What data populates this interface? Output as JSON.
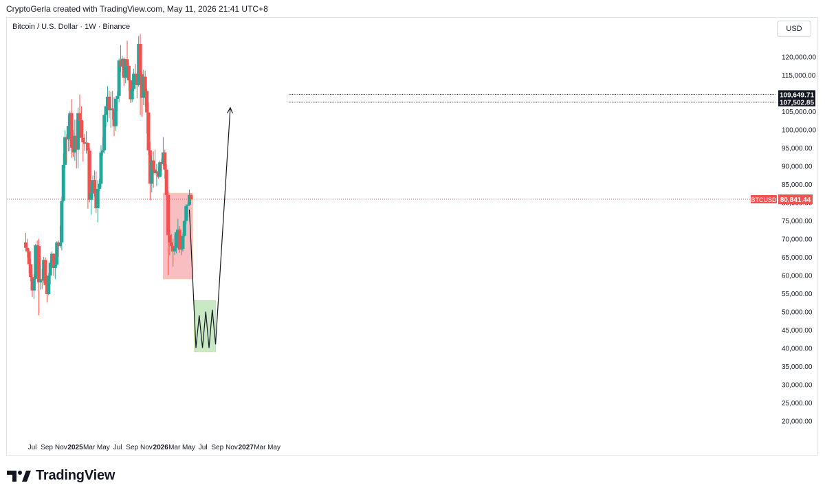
{
  "header": {
    "text": "CryptoGerla created with TradingView.com, May 11, 2026 21:41 UTC+8"
  },
  "symbol": {
    "text": "Bitcoin / U.S. Dollar · 1W · Binance"
  },
  "currency_button": {
    "label": "USD"
  },
  "footer": {
    "brand": "TradingView"
  },
  "colors": {
    "up": "#26a69a",
    "down": "#ef5350",
    "price_line": "#ef5350",
    "red_zone_fill": "#f7a8ad",
    "green_zone_fill": "#b7e1b0",
    "text": "#131722"
  },
  "chart_data": {
    "type": "candlestick",
    "title": "",
    "xlabel": "",
    "ylabel": "",
    "ylim": [
      16000,
      126000
    ],
    "grid": false,
    "x_tick_labels": [
      "Jul",
      "Sep",
      "Nov",
      "2025",
      "Mar",
      "May",
      "Jul",
      "Sep",
      "Nov",
      "2026",
      "Mar",
      "May",
      "Jul",
      "Sep",
      "Nov",
      "2027",
      "Mar",
      "May"
    ],
    "x_tick_dates": [
      "2024-07-01",
      "2024-09-01",
      "2024-11-01",
      "2025-01-01",
      "2025-03-01",
      "2025-05-01",
      "2025-07-01",
      "2025-09-01",
      "2025-11-01",
      "2026-01-01",
      "2026-03-01",
      "2026-05-01",
      "2026-07-01",
      "2026-09-01",
      "2026-11-01",
      "2027-01-01",
      "2027-03-01",
      "2027-05-01"
    ],
    "y_tick_values": [
      20000,
      25000,
      30000,
      35000,
      40000,
      45000,
      50000,
      55000,
      60000,
      65000,
      70000,
      75000,
      80000,
      85000,
      90000,
      95000,
      100000,
      105000,
      110000,
      115000,
      120000
    ],
    "y_tick_labels": [
      "20,000.00",
      "25,000.00",
      "30,000.00",
      "35,000.00",
      "40,000.00",
      "45,000.00",
      "50,000.00",
      "55,000.00",
      "60,000.00",
      "65,000.00",
      "70,000.00",
      "75,000.00",
      "80,000.00",
      "85,000.00",
      "90,000.00",
      "95,000.00",
      "100,000.00",
      "105,000.00",
      "110,000.00",
      "115,000.00",
      "120,000.00"
    ],
    "current_price": {
      "label": "BTCUSD",
      "value": 80841.44,
      "value_label": "80,841.44"
    },
    "levels": [
      {
        "value": 109649.71,
        "label": "109,649.71"
      },
      {
        "value": 107502.85,
        "label": "107,502.85"
      }
    ],
    "zones": [
      {
        "name": "red",
        "x_start": "2026-01-12",
        "x_end": "2026-05-18",
        "y_low": 59000,
        "y_high": 82500
      },
      {
        "name": "green",
        "x_start": "2026-05-25",
        "x_end": "2026-08-24",
        "y_low": 39000,
        "y_high": 53000
      }
    ],
    "projection_path": [
      [
        "2026-05-04",
        78000
      ],
      [
        "2026-06-01",
        40000
      ],
      [
        "2026-06-15",
        49000
      ],
      [
        "2026-06-29",
        40000
      ],
      [
        "2026-07-13",
        50000
      ],
      [
        "2026-07-27",
        40000
      ],
      [
        "2026-08-10",
        50500
      ],
      [
        "2026-08-24",
        41000
      ],
      [
        "2026-10-26",
        106000
      ]
    ],
    "candles": [
      [
        "2024-06-03",
        69000,
        71600,
        66500,
        67500
      ],
      [
        "2024-06-10",
        67500,
        70000,
        64900,
        66500
      ],
      [
        "2024-06-17",
        66500,
        67200,
        60500,
        63000
      ],
      [
        "2024-06-24",
        63000,
        64500,
        58400,
        59500
      ],
      [
        "2024-07-01",
        59500,
        60200,
        54000,
        55800
      ],
      [
        "2024-07-08",
        55800,
        60300,
        53500,
        59000
      ],
      [
        "2024-07-15",
        59000,
        68600,
        58600,
        68200
      ],
      [
        "2024-07-22",
        68200,
        69500,
        63500,
        68000
      ],
      [
        "2024-07-29",
        68000,
        70000,
        49000,
        58000
      ],
      [
        "2024-08-05",
        58000,
        62700,
        56000,
        58900
      ],
      [
        "2024-08-12",
        58900,
        61800,
        56200,
        58500
      ],
      [
        "2024-08-19",
        58500,
        65000,
        57800,
        64200
      ],
      [
        "2024-08-26",
        64200,
        64900,
        57200,
        57300
      ],
      [
        "2024-09-02",
        57300,
        58500,
        52500,
        54800
      ],
      [
        "2024-09-09",
        54800,
        60600,
        54500,
        59900
      ],
      [
        "2024-09-16",
        59900,
        64200,
        57500,
        63400
      ],
      [
        "2024-09-23",
        63400,
        66500,
        62700,
        65900
      ],
      [
        "2024-09-30",
        65900,
        66000,
        59800,
        62000
      ],
      [
        "2024-10-07",
        62000,
        64500,
        58900,
        62900
      ],
      [
        "2024-10-14",
        62900,
        69300,
        62500,
        69000
      ],
      [
        "2024-10-21",
        69000,
        69500,
        65000,
        68000
      ],
      [
        "2024-10-28",
        68000,
        73600,
        67500,
        69000
      ],
      [
        "2024-11-04",
        69000,
        81500,
        66800,
        80400
      ],
      [
        "2024-11-11",
        80400,
        93400,
        80000,
        90300
      ],
      [
        "2024-11-18",
        90300,
        99800,
        89400,
        97900
      ],
      [
        "2024-11-25",
        97900,
        98700,
        90800,
        97300
      ],
      [
        "2024-12-02",
        97300,
        104000,
        94000,
        101000
      ],
      [
        "2024-12-09",
        101000,
        105000,
        94100,
        104500
      ],
      [
        "2024-12-16",
        104500,
        108300,
        92200,
        95000
      ],
      [
        "2024-12-23",
        95000,
        99900,
        92500,
        93700
      ],
      [
        "2024-12-30",
        93700,
        102700,
        91400,
        98300
      ],
      [
        "2025-01-06",
        98300,
        102700,
        89300,
        94500
      ],
      [
        "2025-01-13",
        94500,
        106000,
        89400,
        104500
      ],
      [
        "2025-01-20",
        104500,
        109600,
        99500,
        102600
      ],
      [
        "2025-01-27",
        102600,
        106400,
        97800,
        97700
      ],
      [
        "2025-02-03",
        97700,
        102500,
        91200,
        96500
      ],
      [
        "2025-02-10",
        96500,
        98800,
        94100,
        96100
      ],
      [
        "2025-02-17",
        96100,
        99500,
        93400,
        96300
      ],
      [
        "2025-02-24",
        96300,
        96500,
        78300,
        94200
      ],
      [
        "2025-03-03",
        94200,
        95000,
        80100,
        80700
      ],
      [
        "2025-03-10",
        80700,
        85000,
        76600,
        82600
      ],
      [
        "2025-03-17",
        82600,
        87400,
        81200,
        86100
      ],
      [
        "2025-03-24",
        86100,
        88800,
        81600,
        82400
      ],
      [
        "2025-03-31",
        82400,
        88500,
        77100,
        78400
      ],
      [
        "2025-04-07",
        78400,
        86100,
        74500,
        83700
      ],
      [
        "2025-04-14",
        83700,
        86500,
        83000,
        85100
      ],
      [
        "2025-04-21",
        85100,
        95700,
        84000,
        93700
      ],
      [
        "2025-04-28",
        93700,
        97900,
        92800,
        94300
      ],
      [
        "2025-05-05",
        94300,
        104300,
        93400,
        104000
      ],
      [
        "2025-05-12",
        104000,
        105800,
        100700,
        106400
      ],
      [
        "2025-05-19",
        106400,
        111900,
        102000,
        109000
      ],
      [
        "2025-05-26",
        109000,
        110700,
        103100,
        105300
      ],
      [
        "2025-06-02",
        105300,
        110400,
        100400,
        105800
      ],
      [
        "2025-06-09",
        105800,
        110600,
        102700,
        105500
      ],
      [
        "2025-06-16",
        105500,
        108900,
        98200,
        100900
      ],
      [
        "2025-06-23",
        100900,
        108500,
        99600,
        108400
      ],
      [
        "2025-06-30",
        108400,
        110500,
        105100,
        109200
      ],
      [
        "2025-07-07",
        109200,
        119500,
        107500,
        119000
      ],
      [
        "2025-07-14",
        119000,
        123200,
        115800,
        117300
      ],
      [
        "2025-07-21",
        117300,
        120200,
        114700,
        119400
      ],
      [
        "2025-07-28",
        119400,
        119800,
        112000,
        114200
      ],
      [
        "2025-08-04",
        114200,
        119300,
        112700,
        119300
      ],
      [
        "2025-08-11",
        119300,
        124400,
        117100,
        117500
      ],
      [
        "2025-08-18",
        117500,
        117600,
        110600,
        113500
      ],
      [
        "2025-08-25",
        113500,
        113600,
        107300,
        108300
      ],
      [
        "2025-09-01",
        108300,
        113400,
        107500,
        111100
      ],
      [
        "2025-09-08",
        111100,
        116700,
        110600,
        115300
      ],
      [
        "2025-09-15",
        115300,
        118000,
        114800,
        115200
      ],
      [
        "2025-09-22",
        115200,
        115400,
        108600,
        112200
      ],
      [
        "2025-09-29",
        112200,
        125700,
        111800,
        123500
      ],
      [
        "2025-10-06",
        123500,
        126200,
        104000,
        115200
      ],
      [
        "2025-10-13",
        115200,
        115900,
        103500,
        108700
      ],
      [
        "2025-10-20",
        108700,
        116400,
        106700,
        114500
      ],
      [
        "2025-10-27",
        114500,
        116100,
        106300,
        110600
      ],
      [
        "2025-11-03",
        110600,
        111100,
        98900,
        104700
      ],
      [
        "2025-11-10",
        104700,
        107500,
        93000,
        94300
      ],
      [
        "2025-11-17",
        94300,
        96600,
        80600,
        85100
      ],
      [
        "2025-11-24",
        85100,
        92900,
        82700,
        91500
      ],
      [
        "2025-12-01",
        91500,
        94000,
        84000,
        89000
      ],
      [
        "2025-12-08",
        89000,
        94500,
        87500,
        88000
      ],
      [
        "2025-12-15",
        88000,
        90500,
        84500,
        88500
      ],
      [
        "2025-12-22",
        88500,
        90000,
        86500,
        87000
      ],
      [
        "2025-12-29",
        87000,
        91500,
        86800,
        91000
      ],
      [
        "2026-01-05",
        91000,
        92000,
        88500,
        90500
      ],
      [
        "2026-01-12",
        90500,
        97900,
        90000,
        93700
      ],
      [
        "2026-01-19",
        93700,
        94500,
        86500,
        89000
      ],
      [
        "2026-01-26",
        89000,
        90500,
        81500,
        82000
      ],
      [
        "2026-02-02",
        82000,
        83200,
        60000,
        71000
      ],
      [
        "2026-02-09",
        71000,
        72500,
        65500,
        69000
      ],
      [
        "2026-02-16",
        69000,
        71300,
        66500,
        68000
      ],
      [
        "2026-02-23",
        68000,
        70000,
        62300,
        66500
      ],
      [
        "2026-03-02",
        66500,
        71000,
        65500,
        67500
      ],
      [
        "2026-03-09",
        67500,
        72500,
        66000,
        71800
      ],
      [
        "2026-03-16",
        71800,
        75500,
        70500,
        72500
      ],
      [
        "2026-03-23",
        72500,
        73500,
        66200,
        67000
      ],
      [
        "2026-03-30",
        67000,
        70000,
        65500,
        67200
      ],
      [
        "2026-04-06",
        67200,
        71500,
        66500,
        70800
      ],
      [
        "2026-04-13",
        70800,
        75000,
        70500,
        74900
      ],
      [
        "2026-04-20",
        74900,
        79500,
        74000,
        79000
      ],
      [
        "2026-04-27",
        79000,
        80000,
        76000,
        79300
      ],
      [
        "2026-05-04",
        79300,
        83500,
        79000,
        82000
      ],
      [
        "2026-05-11",
        82000,
        82500,
        80600,
        80841.44
      ]
    ]
  }
}
